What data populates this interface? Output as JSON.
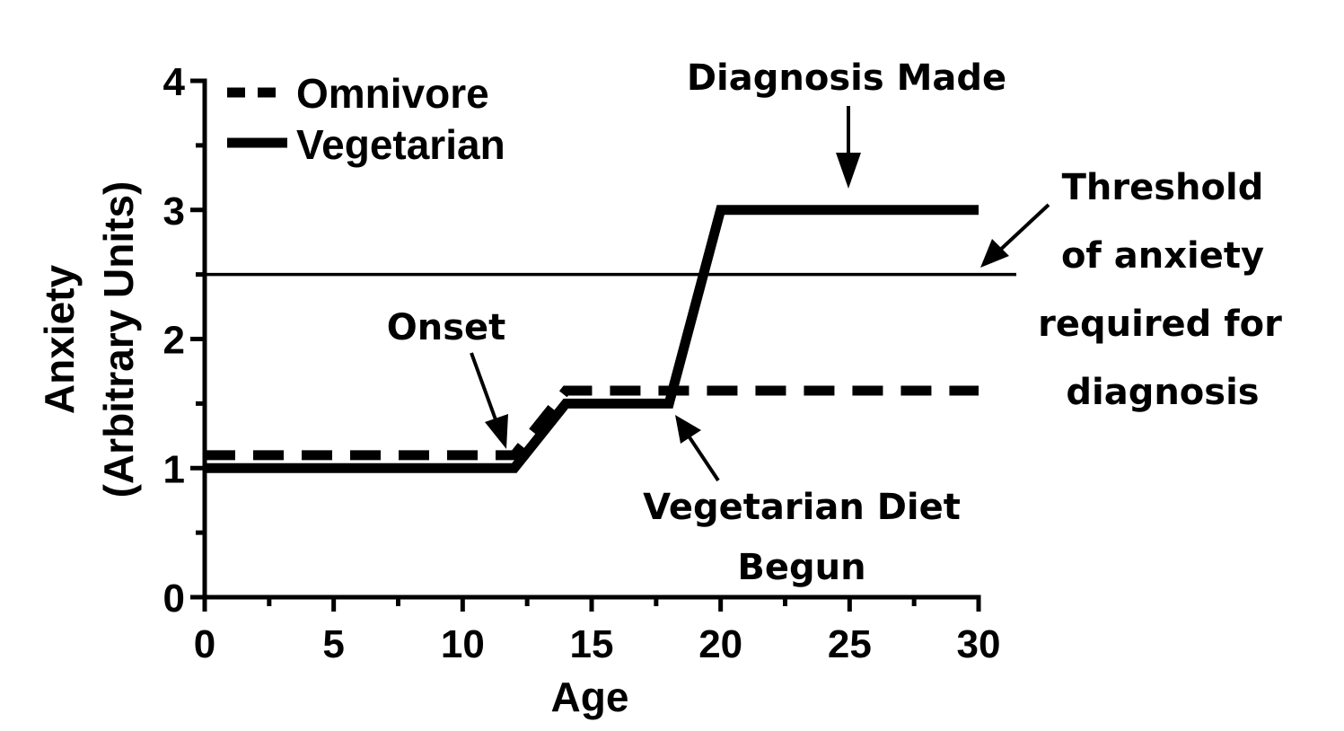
{
  "chart_data": {
    "type": "line",
    "xlabel": "Age",
    "ylabel_line1": "Anxiety",
    "ylabel_line2": "(Arbitrary Units)",
    "xlim": [
      0,
      30
    ],
    "ylim": [
      0,
      4
    ],
    "x_ticks": [
      "0",
      "5",
      "10",
      "15",
      "20",
      "25",
      "30"
    ],
    "y_ticks": [
      "0",
      "1",
      "2",
      "3",
      "4"
    ],
    "grid": false,
    "legend_position": "top-left",
    "series": [
      {
        "name": "Omnivore",
        "style": "dashed",
        "x": [
          0,
          12,
          14,
          30
        ],
        "y": [
          1.1,
          1.1,
          1.6,
          1.6
        ]
      },
      {
        "name": "Vegetarian",
        "style": "solid",
        "x": [
          0,
          12,
          14,
          18,
          20,
          30
        ],
        "y": [
          1.0,
          1.0,
          1.5,
          1.5,
          3.0,
          3.0
        ]
      }
    ],
    "threshold": {
      "y": 2.5,
      "label_lines": [
        "Threshold",
        "of anxiety",
        "required for",
        "diagnosis"
      ]
    },
    "annotations": {
      "onset": "Onset",
      "diagnosis": "Diagnosis Made",
      "diet_line1": "Vegetarian Diet",
      "diet_line2": "Begun"
    }
  }
}
